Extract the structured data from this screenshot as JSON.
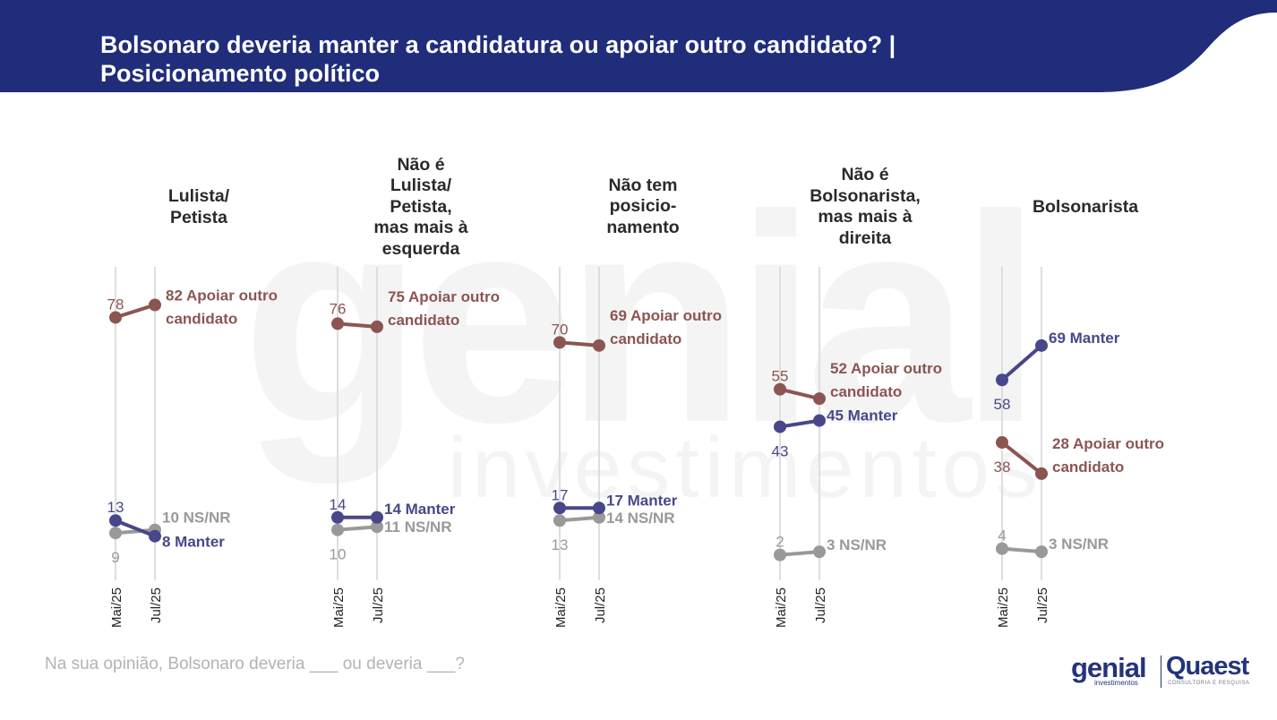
{
  "header": {
    "title": "Bolsonaro deveria manter a candidatura ou apoiar outro candidato? | Posicionamento político",
    "bg_color": "#1f2d7a"
  },
  "watermark": {
    "word1": "genial",
    "word2": "investimentos"
  },
  "footnote": "Na sua opinião, Bolsonaro deveria ___ ou deveria ___?",
  "logo": {
    "genial": "genial",
    "genial_sub": "investimentos",
    "quaest": "Quaest",
    "quaest_sub": "CONSULTORIA E PESQUISA"
  },
  "colors": {
    "apoiar": "#8b5552",
    "manter": "#48478a",
    "nsnr": "#999999"
  },
  "chart_data": {
    "type": "line",
    "x": [
      "Mai/25",
      "Jul/25"
    ],
    "ylim": [
      0,
      100
    ],
    "groups": [
      {
        "title": "Lulista/\nPetista",
        "series": [
          {
            "key": "apoiar",
            "values": [
              78,
              82
            ],
            "end_label": "82 Apoiar outro\ncandidato",
            "start_label": "78"
          },
          {
            "key": "manter",
            "values": [
              13,
              8
            ],
            "end_label": "8 Manter",
            "start_label": "13"
          },
          {
            "key": "nsnr",
            "values": [
              9,
              10
            ],
            "end_label": "10 NS/NR",
            "start_label": "9"
          }
        ]
      },
      {
        "title": "Não é\nLulista/\nPetista,\nmas mais à\nesquerda",
        "series": [
          {
            "key": "apoiar",
            "values": [
              76,
              75
            ],
            "end_label": "75 Apoiar outro\ncandidato",
            "start_label": "76"
          },
          {
            "key": "manter",
            "values": [
              14,
              14
            ],
            "end_label": "14 Manter",
            "start_label": "14"
          },
          {
            "key": "nsnr",
            "values": [
              10,
              11
            ],
            "end_label": "11 NS/NR",
            "start_label": "10"
          }
        ]
      },
      {
        "title": "Não tem\nposicio-\nnamento",
        "series": [
          {
            "key": "apoiar",
            "values": [
              70,
              69
            ],
            "end_label": "69 Apoiar outro\ncandidato",
            "start_label": "70"
          },
          {
            "key": "manter",
            "values": [
              17,
              17
            ],
            "end_label": "17 Manter",
            "start_label": "17"
          },
          {
            "key": "nsnr",
            "values": [
              13,
              14
            ],
            "end_label": "14 NS/NR",
            "start_label": "13"
          }
        ]
      },
      {
        "title": "Não é\nBolsonarista,\nmas mais à\ndireita",
        "series": [
          {
            "key": "apoiar",
            "values": [
              55,
              52
            ],
            "end_label": "52 Apoiar outro\ncandidato",
            "start_label": "55"
          },
          {
            "key": "manter",
            "values": [
              43,
              45
            ],
            "end_label": "45 Manter",
            "start_label": "43"
          },
          {
            "key": "nsnr",
            "values": [
              2,
              3
            ],
            "end_label": "3 NS/NR",
            "start_label": "2"
          }
        ]
      },
      {
        "title": "Bolsonarista",
        "series": [
          {
            "key": "apoiar",
            "values": [
              38,
              28
            ],
            "end_label": "28 Apoiar outro\ncandidato",
            "start_label": "38"
          },
          {
            "key": "manter",
            "values": [
              58,
              69
            ],
            "end_label": "69 Manter",
            "start_label": "58"
          },
          {
            "key": "nsnr",
            "values": [
              4,
              3
            ],
            "end_label": "3 NS/NR",
            "start_label": "4"
          }
        ]
      }
    ]
  }
}
